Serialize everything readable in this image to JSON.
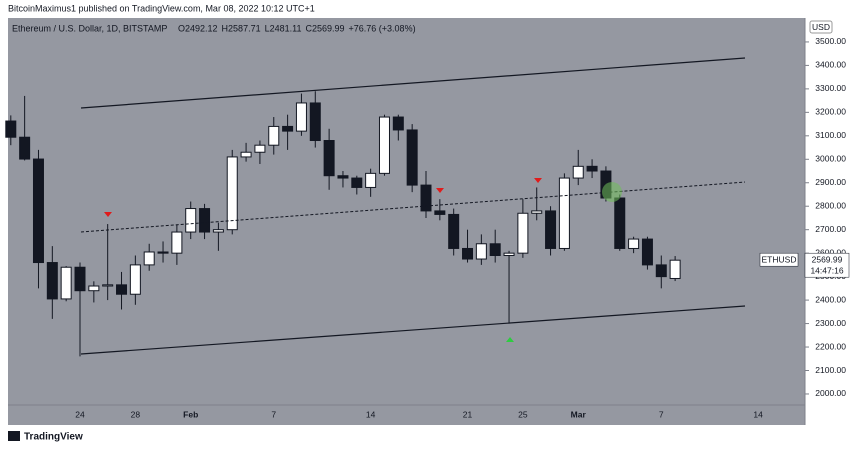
{
  "header": {
    "publisher": "BitcoinMaximus1 published on TradingView.com, Mar 08, 2022 10:12 UTC+1",
    "brand": "TradingView"
  },
  "chart_data": {
    "type": "candlestick",
    "symbol": "Ethereum / U.S. Dollar, 1D, BITSTAMP",
    "ohlc_text": [
      "O2492.12",
      "H2587.71",
      "L2481.11",
      "C2569.99",
      "+76.76 (+3.08%)"
    ],
    "currency": "USD",
    "categories": [
      null,
      null,
      null,
      null,
      null,
      "24",
      null,
      null,
      null,
      "28",
      null,
      null,
      null,
      "Feb",
      null,
      null,
      null,
      null,
      null,
      "7",
      null,
      null,
      null,
      null,
      null,
      null,
      "14",
      null,
      null,
      null,
      null,
      null,
      null,
      "21",
      null,
      null,
      null,
      "25",
      null,
      null,
      null,
      "Mar",
      null,
      null,
      null,
      null,
      null,
      "7",
      null,
      null,
      null,
      null,
      null,
      null,
      "14",
      null,
      null,
      null
    ],
    "open": [
      3163,
      3094,
      3001,
      2560,
      2405,
      2540,
      2440,
      2460,
      2465,
      2425,
      2550,
      2605,
      2600,
      2690,
      2790,
      2690,
      2700,
      3010,
      3030,
      3060,
      3140,
      3120,
      3240,
      3080,
      2930,
      2920,
      2880,
      2940,
      3180,
      3125,
      2890,
      2780,
      2765,
      2620,
      2575,
      2640,
      2590,
      2600,
      2770,
      2780,
      2620,
      2920,
      2970,
      2950,
      2835,
      2620,
      2660,
      2550,
      2492.12,
      null,
      null,
      null,
      null,
      null,
      null,
      null,
      null,
      null
    ],
    "high": [
      3187,
      3270,
      3040,
      2630,
      2545,
      2560,
      2480,
      2724,
      2520,
      2590,
      2640,
      2650,
      2720,
      2820,
      2810,
      2730,
      3040,
      3070,
      3080,
      3180,
      3190,
      3280,
      3290,
      3130,
      2950,
      2930,
      2960,
      3190,
      3190,
      3150,
      2950,
      2830,
      2790,
      2700,
      2680,
      2700,
      2610,
      2830,
      2880,
      2800,
      2940,
      3040,
      3000,
      2970,
      2850,
      2670,
      2670,
      2590,
      2587.71,
      null,
      null,
      null,
      null,
      null,
      null,
      null,
      null,
      null
    ],
    "low": [
      3060,
      2995,
      2450,
      2320,
      2395,
      2160,
      2390,
      2400,
      2360,
      2380,
      2525,
      2560,
      2550,
      2660,
      2660,
      2610,
      2680,
      2990,
      2980,
      3020,
      3040,
      3100,
      3050,
      2870,
      2880,
      2850,
      2840,
      2930,
      3080,
      2860,
      2750,
      2740,
      2590,
      2560,
      2550,
      2560,
      2300,
      2580,
      2740,
      2590,
      2610,
      2890,
      2920,
      2820,
      2610,
      2600,
      2530,
      2450,
      2481.11,
      null,
      null,
      null,
      null,
      null,
      null,
      null,
      null,
      null
    ],
    "close": [
      3094,
      3001,
      2560,
      2405,
      2540,
      2440,
      2460,
      2465,
      2425,
      2550,
      2605,
      2600,
      2690,
      2790,
      2690,
      2700,
      3010,
      3030,
      3060,
      3140,
      3120,
      3240,
      3080,
      2930,
      2920,
      2880,
      2940,
      3180,
      3125,
      2890,
      2780,
      2765,
      2620,
      2575,
      2640,
      2590,
      2600,
      2770,
      2780,
      2620,
      2920,
      2970,
      2950,
      2835,
      2620,
      2660,
      2550,
      2500,
      2569.99,
      null,
      null,
      null,
      null,
      null,
      null,
      null,
      null,
      null
    ],
    "up_color": "#ffffff",
    "down_color": "#131722",
    "ylim": [
      1953,
      3602
    ],
    "yticks": [
      {
        "value": 2000,
        "label": "2000.00"
      },
      {
        "value": 2100,
        "label": "2100.00"
      },
      {
        "value": 2200,
        "label": "2200.00"
      },
      {
        "value": 2300,
        "label": "2300.00"
      },
      {
        "value": 2400,
        "label": "2400.00"
      },
      {
        "value": 2500,
        "label": "2500.00"
      },
      {
        "value": 2600,
        "label": "2600.00"
      },
      {
        "value": 2700,
        "label": "2700.00"
      },
      {
        "value": 2800,
        "label": "2800.00"
      },
      {
        "value": 2900,
        "label": "2900.00"
      },
      {
        "value": 3000,
        "label": "3000.00"
      },
      {
        "value": 3100,
        "label": "3100.00"
      },
      {
        "value": 3200,
        "label": "3200.00"
      },
      {
        "value": 3300,
        "label": "3300.00"
      },
      {
        "value": 3400,
        "label": "3400.00"
      },
      {
        "value": 3500,
        "label": "3500.00"
      }
    ],
    "price_label": {
      "symbol": "ETHUSD",
      "price": 2569.99,
      "countdown": "14:47:16"
    }
  }
}
